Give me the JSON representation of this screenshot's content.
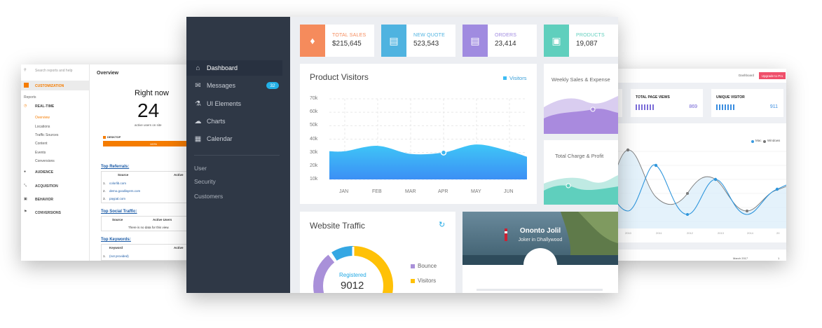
{
  "left_panel": {
    "search_placeholder": "Search reports and help",
    "customization": "CUSTOMIZATION",
    "reports": "Reports",
    "realtime": "REAL-TIME",
    "realtime_items": [
      "Overview",
      "Locations",
      "Traffic Sources",
      "Content",
      "Events",
      "Conversions"
    ],
    "audience": "AUDIENCE",
    "acquisition": "ACQUISITION",
    "behavior": "BEHAVIOR",
    "conversions": "CONVERSIONS",
    "overview_title": "Overview",
    "right_now": "Right now",
    "active_count": "24",
    "active_label": "active users on site",
    "desktop": "DESKTOP",
    "desktop_pct": "100%",
    "progress": 1.0,
    "top_referrals": "Top Referrals:",
    "col_source": "Source",
    "col_active": "Active",
    "col_active_users": "Active Users",
    "referrals": [
      "colorlib.com",
      "demo.goodlayers.com",
      "paypal.com"
    ],
    "top_social": "Top Social Traffic:",
    "no_data": "There is no data for this view.",
    "top_keywords": "Top Keywords:",
    "col_keyword": "Keyword",
    "keywords": [
      "(not provided)"
    ]
  },
  "dashboard": {
    "nav": [
      {
        "label": "Dashboard",
        "icon": "home-icon"
      },
      {
        "label": "Messages",
        "icon": "message-icon",
        "badge": "32"
      },
      {
        "label": "UI Elements",
        "icon": "flask-icon"
      },
      {
        "label": "Charts",
        "icon": "cloud-icon"
      },
      {
        "label": "Calendar",
        "icon": "calendar-icon"
      }
    ],
    "sub_nav": [
      "User",
      "Security",
      "Customers"
    ],
    "stats": [
      {
        "label": "TOTAL SALES",
        "value": "$215,645",
        "color": "#f58b5c",
        "icon": "tag-icon"
      },
      {
        "label": "NEW QUOTE",
        "value": "523,543",
        "color": "#4fb3e0",
        "icon": "document-icon"
      },
      {
        "label": "ORDERS",
        "value": "23,414",
        "color": "#a08be0",
        "icon": "database-icon"
      },
      {
        "label": "PRODUCTS",
        "value": "19,087",
        "color": "#5fcfbd",
        "icon": "box-icon"
      }
    ],
    "product_visitors": {
      "title": "Product Visitors",
      "legend": "Visitors"
    },
    "weekly_title": "Weekly Sales & Expense",
    "charge_title": "Total Charge & Profit",
    "traffic": {
      "title": "Website Traffic",
      "center_label": "Registered",
      "center_value": "9012",
      "legend": [
        "Bounce",
        "Visitors"
      ]
    },
    "profile": {
      "name": "Ononto Jolil",
      "subtitle": "Joker in Dhallywood"
    }
  },
  "chart_data": {
    "type": "area",
    "title": "Product Visitors",
    "categories": [
      "JAN",
      "FEB",
      "MAR",
      "APR",
      "MAY",
      "JUN"
    ],
    "yticks": [
      "70k",
      "60k",
      "50k",
      "40k",
      "30k",
      "20k",
      "10k"
    ],
    "series": [
      {
        "name": "Visitors",
        "values": [
          31,
          35,
          29,
          30,
          36,
          31
        ]
      }
    ],
    "ylim": [
      10,
      70
    ],
    "grid": true,
    "legend": "top-right"
  },
  "right_panel": {
    "dashboard_link": "Dashboard",
    "upgrade": "Upgrade to Pro",
    "total_page_views": "TOTAL PAGE VIEWS",
    "page_views_value": "869",
    "unique_visitor": "UNIQUE VISITOR",
    "unique_value": "911",
    "legend": [
      "Mac",
      "Windows"
    ],
    "years": [
      "2010",
      "2011",
      "2012",
      "2013",
      "2014",
      "20"
    ],
    "footer": "March 2017",
    "footer_num": "1"
  }
}
